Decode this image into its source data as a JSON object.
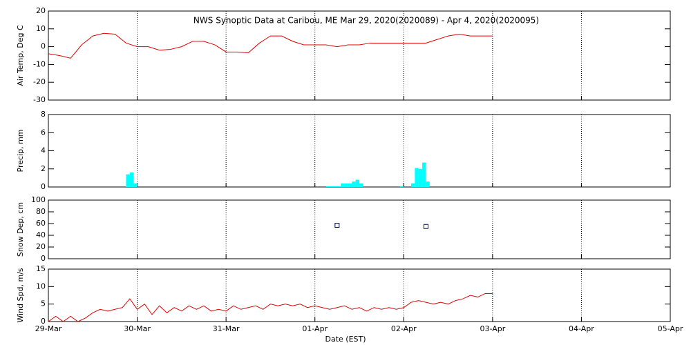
{
  "chart_data": [
    {
      "type": "line",
      "title": "NWS Synoptic Data at Caribou, ME   Mar 29, 2020(2020089) - Apr  4, 2020(2020095)",
      "ylabel": "Air Temp, Deg C",
      "color": "#e00000",
      "x": [
        0,
        3,
        6,
        9,
        12,
        15,
        18,
        21,
        24,
        27,
        30,
        33,
        36,
        39,
        42,
        45,
        48,
        51,
        54,
        57,
        60,
        63,
        66,
        69,
        72,
        75,
        78,
        81,
        84,
        87,
        90,
        93,
        96,
        99,
        102,
        105,
        108,
        111,
        114,
        117,
        120
      ],
      "values": [
        -4,
        -5,
        -6.5,
        1,
        6,
        7.5,
        7,
        2,
        0,
        0,
        -2,
        -1.5,
        0,
        3,
        3,
        1,
        -3,
        -3,
        -3.5,
        2,
        6,
        6,
        3,
        1,
        1,
        1,
        0,
        1,
        1,
        2,
        2,
        2,
        2,
        2,
        2,
        4,
        6,
        7,
        6,
        6,
        6
      ],
      "xlim": [
        0,
        168
      ],
      "ylim": [
        -30,
        20
      ],
      "yticks": [
        -30,
        -20,
        -10,
        0,
        10,
        20
      ],
      "grid": "x"
    },
    {
      "type": "bar",
      "ylabel": "Precip, mm",
      "color": "#00ffff",
      "x": [
        21,
        22,
        23,
        75,
        76,
        77,
        78,
        79,
        80,
        81,
        82,
        83,
        84,
        95,
        98,
        99,
        100,
        101,
        102
      ],
      "values": [
        1.4,
        1.6,
        0.4,
        0.1,
        0.1,
        0.1,
        0.1,
        0.4,
        0.4,
        0.4,
        0.6,
        0.8,
        0.4,
        0.1,
        0.4,
        2.1,
        2.0,
        2.7,
        0.6
      ],
      "xlim": [
        0,
        168
      ],
      "ylim": [
        0,
        8
      ],
      "yticks": [
        0,
        2,
        4,
        6,
        8
      ],
      "grid": "x"
    },
    {
      "type": "scatter",
      "ylabel": "Snow Dep, cm",
      "color": "#000080",
      "x": [
        78,
        102
      ],
      "values": [
        57,
        55
      ],
      "xlim": [
        0,
        168
      ],
      "ylim": [
        0,
        100
      ],
      "yticks": [
        0,
        20,
        40,
        60,
        80,
        100
      ],
      "grid": "x"
    },
    {
      "type": "line",
      "ylabel": "Wind Spd, m/s",
      "xlabel": "Date (EST)",
      "color": "#e00000",
      "x": [
        0,
        2,
        4,
        6,
        8,
        10,
        12,
        14,
        16,
        18,
        20,
        22,
        24,
        26,
        28,
        30,
        32,
        34,
        36,
        38,
        40,
        42,
        44,
        46,
        48,
        50,
        52,
        54,
        56,
        58,
        60,
        62,
        64,
        66,
        68,
        70,
        72,
        74,
        76,
        78,
        80,
        82,
        84,
        86,
        88,
        90,
        92,
        94,
        96,
        98,
        100,
        102,
        104,
        106,
        108,
        110,
        112,
        114,
        116,
        118,
        120
      ],
      "values": [
        0,
        1.5,
        0,
        1.5,
        0,
        1,
        2.5,
        3.5,
        3,
        3.5,
        4,
        6.5,
        3.5,
        5,
        2,
        4.5,
        2.5,
        4,
        3,
        4.5,
        3.5,
        4.5,
        3,
        3.5,
        3,
        4.5,
        3.5,
        4,
        4.5,
        3.5,
        5,
        4.5,
        5,
        4.5,
        5,
        4,
        4.5,
        4,
        3.5,
        4,
        4.5,
        3.5,
        4,
        3,
        4,
        3.5,
        4,
        3.5,
        4,
        5.5,
        6,
        5.5,
        5,
        5.5,
        5,
        6,
        6.5,
        7.5,
        7,
        8,
        8
      ],
      "xlim": [
        0,
        168
      ],
      "ylim": [
        0,
        15
      ],
      "yticks": [
        0,
        5,
        10,
        15
      ],
      "grid": "x",
      "xticks": [
        {
          "value": 0,
          "label": "29-Mar"
        },
        {
          "value": 24,
          "label": "30-Mar"
        },
        {
          "value": 48,
          "label": "31-Mar"
        },
        {
          "value": 72,
          "label": "01-Apr"
        },
        {
          "value": 96,
          "label": "02-Apr"
        },
        {
          "value": 120,
          "label": "03-Apr"
        },
        {
          "value": 144,
          "label": "04-Apr"
        },
        {
          "value": 168,
          "label": "05-Apr"
        }
      ]
    }
  ]
}
